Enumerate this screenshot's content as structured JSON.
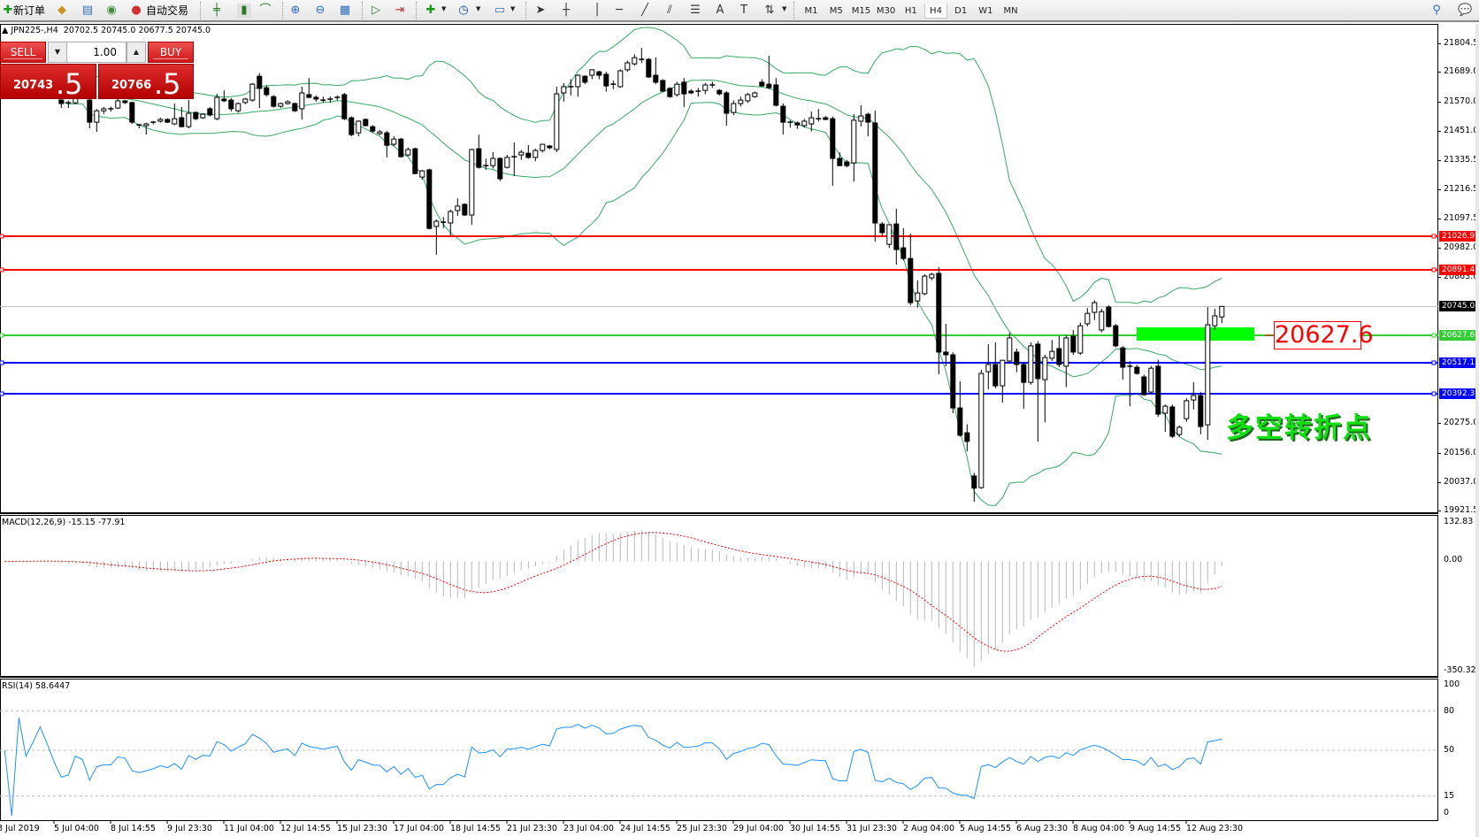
{
  "toolbar": {
    "new_order": "新订单",
    "auto_trade": "自动交易",
    "timeframes": [
      "M1",
      "M5",
      "M15",
      "M30",
      "H1",
      "H4",
      "D1",
      "W1",
      "MN"
    ],
    "active_timeframe": "H4",
    "icons": [
      "new-order-icon",
      "market-watch-icon",
      "navigator-icon",
      "signals-icon",
      "auto-trading-icon",
      "bar-chart-icon",
      "candlestick-icon",
      "line-chart-icon",
      "zoom-in-icon",
      "zoom-out-icon",
      "tile-windows-icon",
      "auto-scroll-icon",
      "chart-shift-icon",
      "indicators-icon",
      "periods-icon",
      "templates-icon",
      "cursor-icon",
      "crosshair-icon",
      "vertical-line-icon",
      "horizontal-line-icon",
      "trendline-icon",
      "channel-icon",
      "fibonacci-icon",
      "text-icon",
      "text-label-icon",
      "arrows-icon",
      "search-icon",
      "chat-icon"
    ]
  },
  "chart": {
    "symbol": "JPN225-,H4",
    "ohlc": [
      "20702.5",
      "20745.0",
      "20677.5",
      "20745.0"
    ]
  },
  "trade_panel": {
    "sell_label": "SELL",
    "buy_label": "BUY",
    "volume": "1.00",
    "sell_main": "20743",
    "sell_frac": ".5",
    "buy_main": "20766",
    "buy_frac": ".5"
  },
  "price_axis": [
    "21804.5",
    "21689.0",
    "21570.0",
    "21451.0",
    "21335.5",
    "21216.5",
    "21097.5",
    "20982.0",
    "20863.0",
    "20275.0",
    "20156.0",
    "20037.0",
    "19921.5"
  ],
  "current_price": {
    "label": "20745.0",
    "color": "#000000"
  },
  "hlines": [
    {
      "label": "21026.9",
      "color": "#ff0000"
    },
    {
      "label": "20891.4",
      "color": "#ff0000"
    },
    {
      "label": "20627.6",
      "color": "#33cc33"
    },
    {
      "label": "20517.1",
      "color": "#0000ff"
    },
    {
      "label": "20392.3",
      "color": "#0000ff"
    }
  ],
  "annotation": {
    "label": "20627.6",
    "text": "多空转折点",
    "zone_color": "#00ff00"
  },
  "macd": {
    "title": "MACD(12,26,9) -15.15 -77.91",
    "axis": [
      "132.83",
      "0.00",
      "-350.32"
    ]
  },
  "rsi": {
    "title": "RSI(14) 58.6447",
    "axis": [
      "100",
      "80",
      "50",
      "15",
      "0"
    ]
  },
  "time_axis": [
    "3 Jul 2019",
    "5 Jul 04:00",
    "8 Jul 14:55",
    "9 Jul 23:30",
    "11 Jul 04:00",
    "12 Jul 14:55",
    "15 Jul 23:30",
    "17 Jul 04:00",
    "18 Jul 14:55",
    "21 Jul 23:30",
    "23 Jul 04:00",
    "24 Jul 14:55",
    "25 Jul 23:30",
    "29 Jul 04:00",
    "30 Jul 14:55",
    "31 Jul 23:30",
    "2 Aug 04:00",
    "5 Aug 14:55",
    "6 Aug 23:30",
    "8 Aug 04:00",
    "9 Aug 14:55",
    "12 Aug 23:30"
  ],
  "chart_data": {
    "type": "candlestick",
    "indicators": [
      "Bollinger Bands(20,2)",
      "MACD(12,26,9)",
      "RSI(14)"
    ],
    "colors": {
      "bands": "#3aa867",
      "macd_hist": "#b8b8b8",
      "macd_signal": "#ff0000",
      "rsi": "#1e90ff"
    },
    "price_range": [
      19921.5,
      21804.5
    ],
    "candles_ohlc": [
      [
        21600,
        21625,
        21590,
        21615
      ],
      [
        21615,
        21635,
        21600,
        21610
      ],
      [
        21610,
        21630,
        21595,
        21625
      ],
      [
        21625,
        21640,
        21605,
        21612
      ],
      [
        21612,
        21630,
        21600,
        21620
      ],
      [
        21620,
        21645,
        21610,
        21635
      ],
      [
        21635,
        21650,
        21615,
        21622
      ],
      [
        21622,
        21635,
        21590,
        21598
      ],
      [
        21576,
        21580,
        21544,
        21562
      ],
      [
        21562,
        21575,
        21544,
        21565
      ],
      [
        21565,
        21610,
        21560,
        21600
      ],
      [
        21600,
        21620,
        21585,
        21590
      ],
      [
        21576,
        21580,
        21462,
        21487
      ],
      [
        21487,
        21540,
        21448,
        21533
      ],
      [
        21533,
        21548,
        21520,
        21541
      ],
      [
        21541,
        21550,
        21530,
        21541
      ],
      [
        21544,
        21580,
        21540,
        21573
      ],
      [
        21573,
        21576,
        21560,
        21566
      ],
      [
        21566,
        21570,
        21480,
        21487
      ],
      [
        21476,
        21480,
        21462,
        21473
      ],
      [
        21473,
        21485,
        21437,
        21480
      ],
      [
        21484,
        21492,
        21478,
        21487
      ],
      [
        21491,
        21505,
        21485,
        21498
      ],
      [
        21498,
        21502,
        21484,
        21487
      ],
      [
        21480,
        21562,
        21475,
        21501
      ],
      [
        21505,
        21548,
        21466,
        21469
      ],
      [
        21469,
        21576,
        21462,
        21523
      ],
      [
        21526,
        21530,
        21495,
        21501
      ],
      [
        21505,
        21522,
        21500,
        21519
      ],
      [
        21541,
        21548,
        21510,
        21516
      ],
      [
        21501,
        21601,
        21495,
        21587
      ],
      [
        21580,
        21615,
        21568,
        21573
      ],
      [
        21576,
        21584,
        21530,
        21541
      ],
      [
        21533,
        21566,
        21525,
        21562
      ],
      [
        21566,
        21585,
        21560,
        21580
      ],
      [
        21576,
        21645,
        21570,
        21640
      ],
      [
        21672,
        21685,
        21544,
        21623
      ],
      [
        21626,
        21635,
        21590,
        21598
      ],
      [
        21590,
        21596,
        21545,
        21551
      ],
      [
        21551,
        21566,
        21545,
        21562
      ],
      [
        21562,
        21575,
        21558,
        21569
      ],
      [
        21562,
        21566,
        21528,
        21533
      ],
      [
        21541,
        21630,
        21498,
        21605
      ],
      [
        21598,
        21665,
        21583,
        21587
      ],
      [
        21587,
        21595,
        21570,
        21580
      ],
      [
        21576,
        21590,
        21565,
        21573
      ],
      [
        21576,
        21590,
        21565,
        21580
      ],
      [
        21583,
        21595,
        21575,
        21587
      ],
      [
        21598,
        21605,
        21495,
        21501
      ],
      [
        21505,
        21510,
        21430,
        21437
      ],
      [
        21444,
        21495,
        21430,
        21491
      ],
      [
        21498,
        21502,
        21470,
        21473
      ],
      [
        21469,
        21475,
        21445,
        21451
      ],
      [
        21441,
        21455,
        21435,
        21448
      ],
      [
        21444,
        21452,
        21345,
        21394
      ],
      [
        21398,
        21430,
        21390,
        21419
      ],
      [
        21419,
        21423,
        21345,
        21348
      ],
      [
        21355,
        21385,
        21350,
        21377
      ],
      [
        21380,
        21384,
        21277,
        21280
      ],
      [
        21266,
        21295,
        21255,
        21291
      ],
      [
        21295,
        21300,
        21055,
        21059
      ],
      [
        21067,
        21095,
        20953,
        21088
      ],
      [
        21084,
        21105,
        21060,
        21084
      ],
      [
        21081,
        21135,
        21028,
        21127
      ],
      [
        21131,
        21180,
        21110,
        21149
      ],
      [
        21156,
        21160,
        21110,
        21113
      ],
      [
        21113,
        21380,
        21074,
        21377
      ],
      [
        21380,
        21437,
        21300,
        21305
      ],
      [
        21309,
        21340,
        21295,
        21312
      ],
      [
        21312,
        21366,
        21300,
        21341
      ],
      [
        21341,
        21345,
        21250,
        21259
      ],
      [
        21305,
        21355,
        21300,
        21345
      ],
      [
        21345,
        21405,
        21270,
        21348
      ],
      [
        21355,
        21375,
        21335,
        21366
      ],
      [
        21362,
        21395,
        21340,
        21345
      ],
      [
        21345,
        21380,
        21330,
        21373
      ],
      [
        21373,
        21400,
        21365,
        21398
      ],
      [
        21391,
        21395,
        21378,
        21384
      ],
      [
        21377,
        21630,
        21366,
        21601
      ],
      [
        21605,
        21645,
        21570,
        21630
      ],
      [
        21630,
        21660,
        21595,
        21630
      ],
      [
        21630,
        21680,
        21590,
        21676
      ],
      [
        21672,
        21676,
        21640,
        21648
      ],
      [
        21676,
        21700,
        21660,
        21698
      ],
      [
        21690,
        21694,
        21660,
        21676
      ],
      [
        21680,
        21690,
        21610,
        21633
      ],
      [
        21640,
        21655,
        21620,
        21640
      ],
      [
        21630,
        21700,
        21625,
        21694
      ],
      [
        21698,
        21735,
        21690,
        21726
      ],
      [
        21722,
        21760,
        21715,
        21747
      ],
      [
        21740,
        21787,
        21725,
        21740
      ],
      [
        21740,
        21745,
        21665,
        21669
      ],
      [
        21676,
        21748,
        21640,
        21648
      ],
      [
        21655,
        21660,
        21610,
        21612
      ],
      [
        21623,
        21628,
        21585,
        21590
      ],
      [
        21598,
        21650,
        21590,
        21640
      ],
      [
        21648,
        21665,
        21548,
        21601
      ],
      [
        21612,
        21620,
        21600,
        21605
      ],
      [
        21612,
        21625,
        21590,
        21612
      ],
      [
        21615,
        21645,
        21600,
        21637
      ],
      [
        21637,
        21650,
        21625,
        21637
      ],
      [
        21615,
        21620,
        21595,
        21601
      ],
      [
        21605,
        21612,
        21473,
        21523
      ],
      [
        21526,
        21575,
        21515,
        21562
      ],
      [
        21562,
        21590,
        21550,
        21576
      ],
      [
        21573,
        21605,
        21565,
        21598
      ],
      [
        21590,
        21610,
        21585,
        21605
      ],
      [
        21648,
        21660,
        21630,
        21633
      ],
      [
        21640,
        21755,
        21620,
        21626
      ],
      [
        21637,
        21665,
        21550,
        21555
      ],
      [
        21551,
        21562,
        21437,
        21487
      ],
      [
        21487,
        21495,
        21465,
        21484
      ],
      [
        21484,
        21490,
        21460,
        21476
      ],
      [
        21473,
        21500,
        21465,
        21491
      ],
      [
        21480,
        21530,
        21450,
        21505
      ],
      [
        21501,
        21540,
        21490,
        21501
      ],
      [
        21505,
        21512,
        21495,
        21498
      ],
      [
        21501,
        21510,
        21231,
        21341
      ],
      [
        21341,
        21365,
        21310,
        21312
      ],
      [
        21327,
        21335,
        21305,
        21312
      ],
      [
        21323,
        21520,
        21248,
        21495
      ],
      [
        21491,
        21555,
        21470,
        21512
      ],
      [
        21519,
        21525,
        21430,
        21487
      ],
      [
        21484,
        21533,
        21006,
        21081
      ],
      [
        21077,
        21085,
        21030,
        21042
      ],
      [
        20995,
        21060,
        20980,
        21074
      ],
      [
        21077,
        21138,
        20913,
        20974
      ],
      [
        20981,
        21060,
        20930,
        20938
      ],
      [
        20938,
        21038,
        20750,
        20760
      ],
      [
        20767,
        20850,
        20740,
        20799
      ],
      [
        20796,
        20875,
        20790,
        20867
      ],
      [
        20860,
        20880,
        20850,
        20874
      ],
      [
        20878,
        20903,
        20472,
        20561
      ],
      [
        20561,
        20675,
        20504,
        20550
      ],
      [
        20550,
        20560,
        20315,
        20336
      ],
      [
        20336,
        20443,
        20220,
        20226
      ],
      [
        20236,
        20270,
        20161,
        20201
      ],
      [
        20062,
        20075,
        19958,
        20013
      ],
      [
        20015,
        20490,
        20010,
        20475
      ],
      [
        20482,
        20593,
        20411,
        20511
      ],
      [
        20511,
        20600,
        20415,
        20425
      ],
      [
        20425,
        20530,
        20357,
        20528
      ],
      [
        20525,
        20639,
        20515,
        20618
      ],
      [
        20561,
        20575,
        20480,
        20511
      ],
      [
        20511,
        20518,
        20333,
        20439
      ],
      [
        20439,
        20600,
        20430,
        20586
      ],
      [
        20593,
        20605,
        20200,
        20454
      ],
      [
        20450,
        20550,
        20278,
        20539
      ],
      [
        20536,
        20610,
        20525,
        20564
      ],
      [
        20575,
        20625,
        20500,
        20511
      ],
      [
        20504,
        20630,
        20420,
        20618
      ],
      [
        20625,
        20650,
        20550,
        20561
      ],
      [
        20557,
        20680,
        20550,
        20667
      ],
      [
        20675,
        20738,
        20665,
        20717
      ],
      [
        20721,
        20770,
        20690,
        20760
      ],
      [
        20650,
        20735,
        20640,
        20724
      ],
      [
        20742,
        20750,
        20660,
        20664
      ],
      [
        20667,
        20675,
        20580,
        20586
      ],
      [
        20578,
        20585,
        20450,
        20500
      ],
      [
        20504,
        20525,
        20343,
        20500
      ],
      [
        20500,
        20510,
        20470,
        20475
      ],
      [
        20461,
        20470,
        20385,
        20389
      ],
      [
        20400,
        20505,
        20395,
        20496
      ],
      [
        20504,
        20530,
        20300,
        20311
      ],
      [
        20315,
        20350,
        20240,
        20343
      ],
      [
        20340,
        20350,
        20215,
        20222
      ],
      [
        20229,
        20265,
        20220,
        20258
      ],
      [
        20293,
        20375,
        20280,
        20365
      ],
      [
        20368,
        20440,
        20330,
        20386
      ],
      [
        20386,
        20400,
        20230,
        20261
      ],
      [
        20268,
        20742,
        20208,
        20671
      ],
      [
        20667,
        20735,
        20650,
        20707
      ],
      [
        20702.5,
        20745,
        20677.5,
        20745
      ]
    ]
  }
}
